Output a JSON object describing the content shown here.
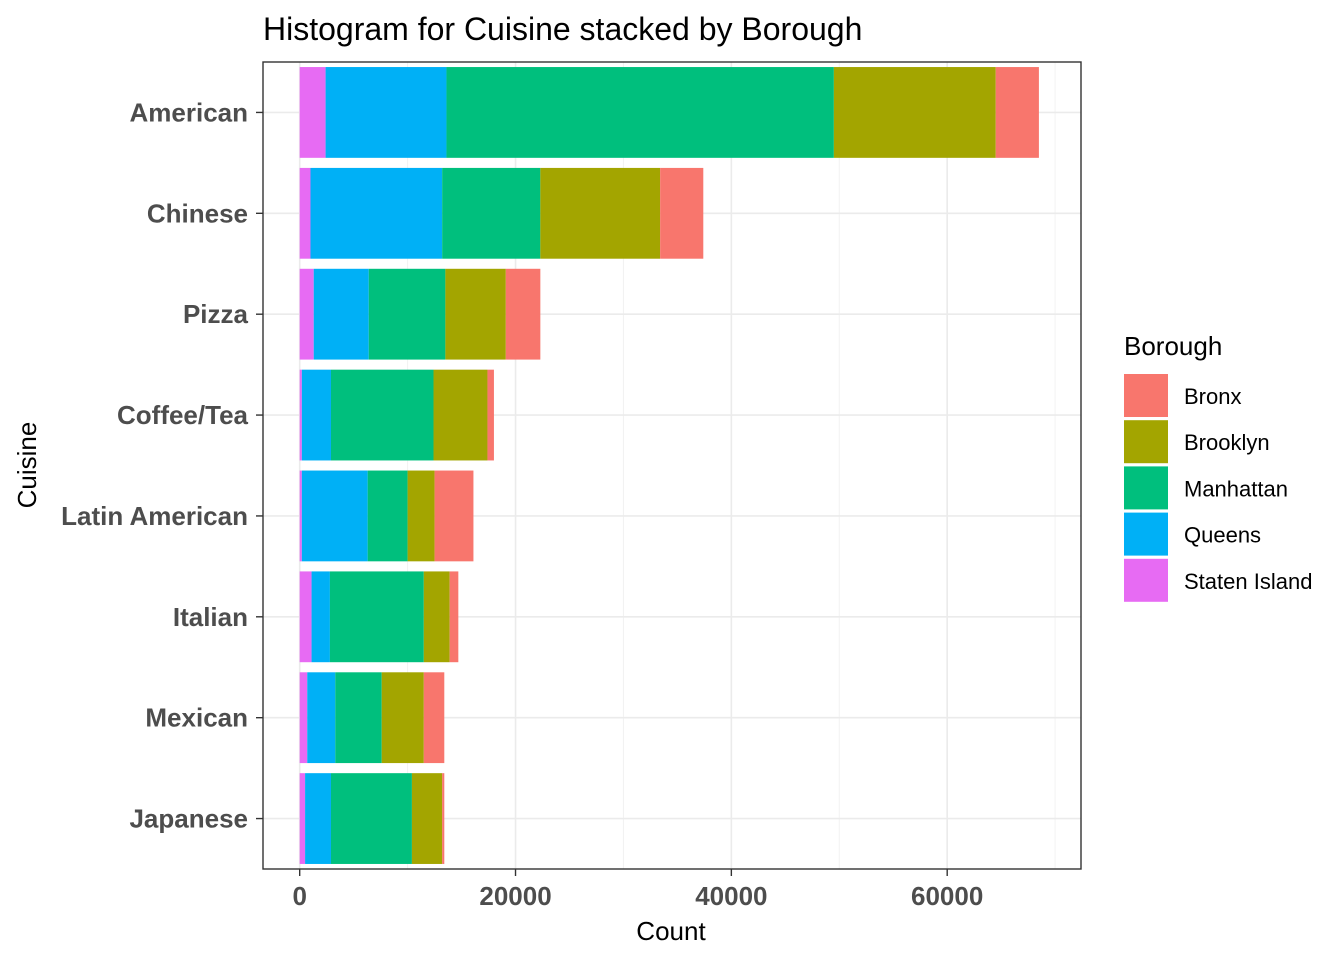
{
  "chart_data": {
    "type": "bar",
    "orientation": "horizontal",
    "stacked": true,
    "title": "Histogram for Cuisine stacked by Borough",
    "xlabel": "Count",
    "ylabel": "Cuisine",
    "xlim": [
      -3400,
      72400
    ],
    "xticks": [
      0,
      20000,
      40000,
      60000
    ],
    "xtick_labels": [
      "0",
      "20000",
      "40000",
      "60000"
    ],
    "grid": true,
    "legend": {
      "title": "Borough",
      "position": "right"
    },
    "categories": [
      "American",
      "Chinese",
      "Pizza",
      "Coffee/Tea",
      "Latin American",
      "Italian",
      "Mexican",
      "Japanese"
    ],
    "series": [
      {
        "name": "Staten Island",
        "color": "#E76BF3",
        "values": [
          2400,
          1000,
          1300,
          200,
          200,
          1100,
          700,
          500
        ]
      },
      {
        "name": "Queens",
        "color": "#00B0F6",
        "values": [
          11200,
          12200,
          5100,
          2700,
          6100,
          1700,
          2600,
          2400
        ]
      },
      {
        "name": "Manhattan",
        "color": "#00BF7D",
        "values": [
          35900,
          9100,
          7100,
          9500,
          3700,
          8700,
          4300,
          7500
        ]
      },
      {
        "name": "Brooklyn",
        "color": "#A3A500",
        "values": [
          15000,
          11100,
          5600,
          5000,
          2500,
          2400,
          3900,
          2800
        ]
      },
      {
        "name": "Bronx",
        "color": "#F8766D",
        "values": [
          4000,
          4000,
          3200,
          600,
          3600,
          800,
          1900,
          200
        ]
      }
    ],
    "legend_order": [
      "Bronx",
      "Brooklyn",
      "Manhattan",
      "Queens",
      "Staten Island"
    ]
  }
}
